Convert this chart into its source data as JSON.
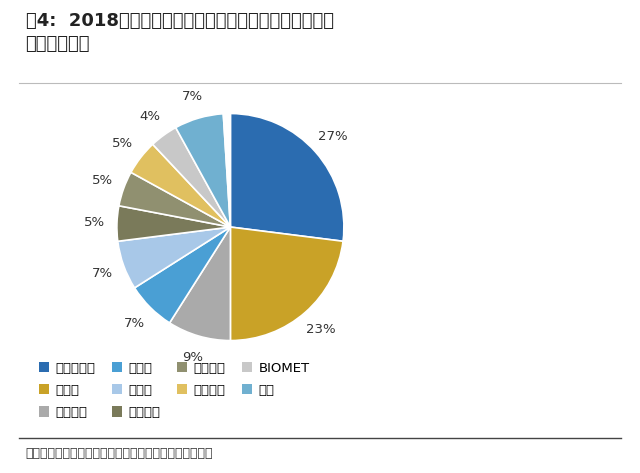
{
  "title_line1": "图4:  2018年国内钛材料颅骨修补固定产品市场份额（以",
  "title_line2": "出厂价计算）",
  "slices": [
    27,
    23,
    9,
    7,
    7,
    5,
    5,
    5,
    4,
    7,
    1
  ],
  "colors": [
    "#2B6CB0",
    "#C9A227",
    "#AAAAAA",
    "#4A9FD4",
    "#A8C8E8",
    "#7A7A5A",
    "#909070",
    "#E0C060",
    "#C8C8C8",
    "#70B0D0",
    "#FFFFFF"
  ],
  "pct_labels": [
    "27%",
    "23%",
    "9%",
    "7%",
    "7%",
    "5%",
    "5%",
    "5%",
    "4%",
    "7%"
  ],
  "legend_labels": [
    "强生辛迪思",
    "美敦力",
    "康拓医疗",
    "史塞克",
    "比多亚",
    "康尔医疗",
    "双申医疗",
    "大博医疗",
    "BIOMET",
    "其他"
  ],
  "legend_colors": [
    "#2B6CB0",
    "#C9A227",
    "#AAAAAA",
    "#4A9FD4",
    "#A8C8E8",
    "#7A7A5A",
    "#909070",
    "#E0C060",
    "#C8C8C8",
    "#70B0D0"
  ],
  "source_text": "数据来源：康拓医疗招股说明书，广发证券发展研究中心",
  "background_color": "#FFFFFF",
  "title_fontsize": 13,
  "legend_fontsize": 9.5,
  "source_fontsize": 9
}
